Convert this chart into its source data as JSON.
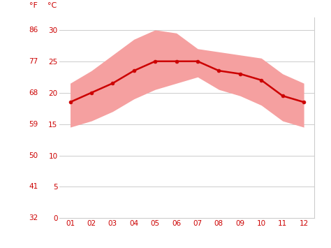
{
  "months": [
    1,
    2,
    3,
    4,
    5,
    6,
    7,
    8,
    9,
    10,
    11,
    12
  ],
  "month_labels": [
    "01",
    "02",
    "03",
    "04",
    "05",
    "06",
    "07",
    "08",
    "09",
    "10",
    "11",
    "12"
  ],
  "avg_temp_c": [
    18.5,
    20.0,
    21.5,
    23.5,
    25.0,
    25.0,
    25.0,
    23.5,
    23.0,
    22.0,
    19.5,
    18.5
  ],
  "max_temp_c": [
    21.5,
    23.5,
    26.0,
    28.5,
    30.0,
    29.5,
    27.0,
    26.5,
    26.0,
    25.5,
    23.0,
    21.5
  ],
  "min_temp_c": [
    14.5,
    15.5,
    17.0,
    19.0,
    20.5,
    21.5,
    22.5,
    20.5,
    19.5,
    18.0,
    15.5,
    14.5
  ],
  "line_color": "#cc0000",
  "band_color": "#f5a0a0",
  "background_color": "#ffffff",
  "grid_color": "#cccccc",
  "tick_color": "#cc0000",
  "yticks_c": [
    0,
    5,
    10,
    15,
    20,
    25,
    30
  ],
  "yticks_f": [
    32,
    41,
    50,
    59,
    68,
    77,
    86
  ],
  "ylim_c": [
    0,
    32
  ],
  "xlim": [
    0.5,
    12.5
  ]
}
